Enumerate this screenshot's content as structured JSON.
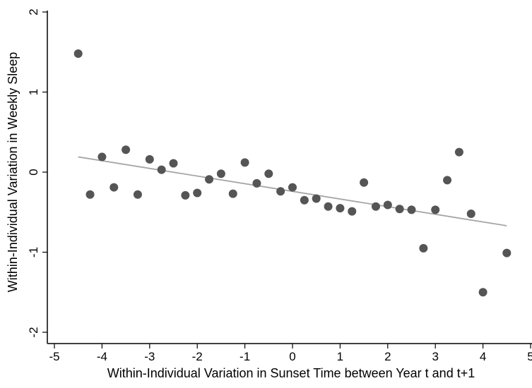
{
  "chart_data": {
    "type": "scatter",
    "title": "",
    "xlabel": "Within-Individual Variation in Sunset Time between Year t and t+1",
    "ylabel": "Within-Individual Variation in Weekly Sleep",
    "xlim": [
      -5,
      5
    ],
    "ylim": [
      -2,
      2
    ],
    "xticks": [
      -5,
      -4,
      -3,
      -2,
      -1,
      0,
      1,
      2,
      3,
      4,
      5
    ],
    "yticks": [
      -2,
      -1,
      0,
      1,
      2
    ],
    "xtick_labels": [
      "-5",
      "-4",
      "-3",
      "-2",
      "-1",
      "0",
      "1",
      "2",
      "3",
      "4",
      "5"
    ],
    "ytick_labels": [
      "-2",
      "-1",
      "0",
      "1",
      "2"
    ],
    "grid": false,
    "legend": "none",
    "points": [
      {
        "x": -4.5,
        "y": 1.48
      },
      {
        "x": -4.25,
        "y": -0.28
      },
      {
        "x": -4.0,
        "y": 0.19
      },
      {
        "x": -3.75,
        "y": -0.19
      },
      {
        "x": -3.5,
        "y": 0.28
      },
      {
        "x": -3.25,
        "y": -0.28
      },
      {
        "x": -3.0,
        "y": 0.16
      },
      {
        "x": -2.75,
        "y": 0.03
      },
      {
        "x": -2.5,
        "y": 0.11
      },
      {
        "x": -2.25,
        "y": -0.29
      },
      {
        "x": -2.0,
        "y": -0.26
      },
      {
        "x": -1.75,
        "y": -0.09
      },
      {
        "x": -1.5,
        "y": -0.02
      },
      {
        "x": -1.25,
        "y": -0.27
      },
      {
        "x": -1.0,
        "y": 0.12
      },
      {
        "x": -0.75,
        "y": -0.14
      },
      {
        "x": -0.5,
        "y": -0.02
      },
      {
        "x": -0.25,
        "y": -0.24
      },
      {
        "x": 0.0,
        "y": -0.19
      },
      {
        "x": 0.25,
        "y": -0.35
      },
      {
        "x": 0.5,
        "y": -0.33
      },
      {
        "x": 0.75,
        "y": -0.43
      },
      {
        "x": 1.0,
        "y": -0.45
      },
      {
        "x": 1.25,
        "y": -0.49
      },
      {
        "x": 1.5,
        "y": -0.13
      },
      {
        "x": 1.75,
        "y": -0.43
      },
      {
        "x": 2.0,
        "y": -0.41
      },
      {
        "x": 2.25,
        "y": -0.46
      },
      {
        "x": 2.5,
        "y": -0.47
      },
      {
        "x": 2.75,
        "y": -0.95
      },
      {
        "x": 3.0,
        "y": -0.47
      },
      {
        "x": 3.25,
        "y": -0.1
      },
      {
        "x": 3.5,
        "y": 0.25
      },
      {
        "x": 3.75,
        "y": -0.52
      },
      {
        "x": 4.0,
        "y": -1.5
      },
      {
        "x": 4.5,
        "y": -1.01
      }
    ],
    "fit_line": {
      "x": [
        -4.5,
        4.5
      ],
      "y": [
        0.19,
        -0.67
      ]
    },
    "colors": {
      "marker": "#555555",
      "fit_line": "#a6a6a6",
      "axis": "#000000"
    }
  }
}
